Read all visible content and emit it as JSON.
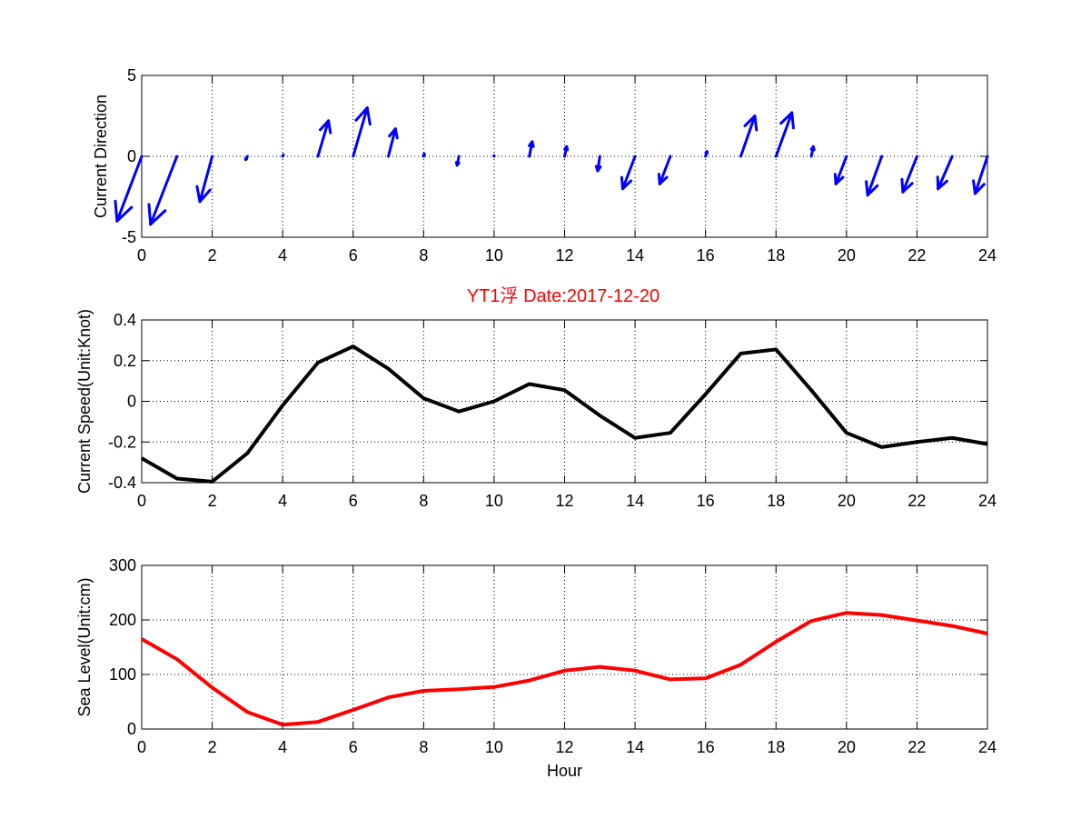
{
  "figure_title": "YT1浮   Date:2017-12-20",
  "title_color": "#ff0000",
  "chart_data": [
    {
      "type": "quiver",
      "ylabel": "Current Direction",
      "xlabel": "",
      "xlim": [
        0,
        24
      ],
      "ylim": [
        -5,
        5
      ],
      "xticks": [
        0,
        2,
        4,
        6,
        8,
        10,
        12,
        14,
        16,
        18,
        20,
        22,
        24
      ],
      "yticks": [
        -5,
        0,
        5
      ],
      "grid": true,
      "color": "#0000ff",
      "x": [
        0,
        1,
        2,
        3,
        4,
        5,
        6,
        7,
        8,
        9,
        10,
        11,
        12,
        13,
        14,
        15,
        16,
        17,
        18,
        19,
        20,
        21,
        22,
        23,
        24
      ],
      "u": [
        -0.7,
        -0.75,
        -0.35,
        -0.05,
        0.02,
        0.3,
        0.4,
        0.2,
        0.02,
        -0.05,
        0.0,
        0.08,
        0.06,
        -0.06,
        -0.35,
        -0.3,
        0.04,
        0.4,
        0.45,
        0.06,
        -0.3,
        -0.4,
        -0.4,
        -0.4,
        -0.35
      ],
      "v": [
        -4.0,
        -4.2,
        -2.8,
        -0.2,
        0.1,
        2.2,
        3.0,
        1.7,
        0.15,
        -0.55,
        0.05,
        0.9,
        0.6,
        -0.9,
        -2.0,
        -1.7,
        0.3,
        2.5,
        2.7,
        0.6,
        -1.7,
        -2.4,
        -2.2,
        -2.0,
        -2.3
      ]
    },
    {
      "type": "line",
      "ylabel": "Current Speed(Unit:Knot)",
      "xlabel": "",
      "xlim": [
        0,
        24
      ],
      "ylim": [
        -0.4,
        0.4
      ],
      "xticks": [
        0,
        2,
        4,
        6,
        8,
        10,
        12,
        14,
        16,
        18,
        20,
        22,
        24
      ],
      "yticks": [
        -0.4,
        -0.2,
        0,
        0.2,
        0.4
      ],
      "ytick_labels": [
        "-0.4",
        "-0.2",
        "0",
        "0.2",
        "0.4"
      ],
      "grid": true,
      "color": "#000000",
      "x": [
        0,
        1,
        2,
        3,
        4,
        5,
        6,
        7,
        8,
        9,
        10,
        11,
        12,
        13,
        14,
        15,
        16,
        17,
        18,
        19,
        20,
        21,
        22,
        23,
        24
      ],
      "y": [
        -0.28,
        -0.38,
        -0.395,
        -0.255,
        -0.02,
        0.19,
        0.27,
        0.16,
        0.015,
        -0.05,
        0.0,
        0.085,
        0.055,
        -0.07,
        -0.18,
        -0.155,
        0.035,
        0.235,
        0.255,
        0.055,
        -0.155,
        -0.225,
        -0.2,
        -0.18,
        -0.21
      ]
    },
    {
      "type": "line",
      "ylabel": "Sea Level(Unit:cm)",
      "xlabel": "Hour",
      "xlim": [
        0,
        24
      ],
      "ylim": [
        0,
        300
      ],
      "xticks": [
        0,
        2,
        4,
        6,
        8,
        10,
        12,
        14,
        16,
        18,
        20,
        22,
        24
      ],
      "yticks": [
        0,
        100,
        200,
        300
      ],
      "grid": true,
      "color": "#ff0000",
      "x": [
        0,
        1,
        2,
        3,
        4,
        5,
        6,
        7,
        8,
        9,
        10,
        11,
        12,
        13,
        14,
        15,
        16,
        17,
        18,
        19,
        20,
        21,
        22,
        23,
        24
      ],
      "y": [
        165,
        128,
        76,
        31,
        8,
        13,
        35,
        58,
        70,
        73,
        77,
        89,
        107,
        114,
        107,
        91,
        93,
        118,
        160,
        198,
        213,
        209,
        199,
        189,
        175
      ]
    }
  ]
}
